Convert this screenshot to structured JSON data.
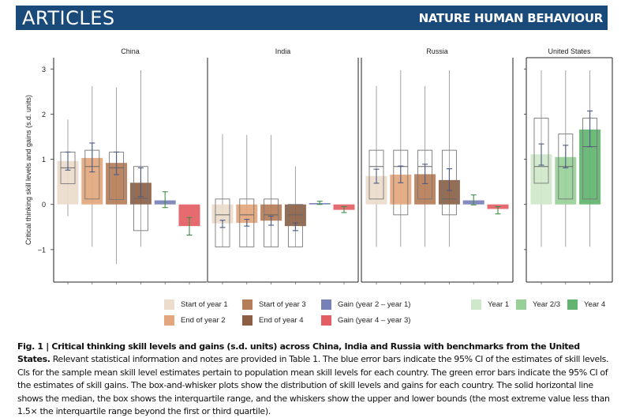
{
  "header": {
    "section": "ARTICLES",
    "journal": "NATURE HUMAN BEHAVIOUR",
    "color": "#1a4a7a"
  },
  "chart_data": {
    "type": "bar",
    "ylabel": "Critical thinking skill levels and gains (s.d. units)",
    "ylim": [
      -1.72,
      3.25
    ],
    "yticks": [
      3,
      2,
      1,
      0,
      -1
    ],
    "ytick_labels": [
      "3",
      "2",
      "1",
      "0",
      "−1"
    ],
    "grid": false,
    "legend_placement": "bottom",
    "colors": {
      "Start of year 1": "#ebdccb",
      "End of year 2": "#e4a77d",
      "Start of year 3": "#b57d58",
      "End of year 4": "#8c5f45",
      "Gain (year 2 – year 1)": "#7880b8",
      "Gain (year 4 – year 3)": "#e35e64",
      "Year 1": "#cfe8ca",
      "Year 2/3": "#98d098",
      "Year 4": "#62b470",
      "level_ci": "#4b5a86",
      "gain_ci": "#3f8f45"
    },
    "panels": [
      {
        "title": "China",
        "bars": [
          {
            "category": "Start of year 1",
            "mean": 0.96,
            "ci": [
              0.76,
              1.16
            ],
            "box": {
              "q1": 0.46,
              "median": 0.81,
              "q3": 1.16,
              "whisker_low": -0.26,
              "whisker_high": 1.88
            }
          },
          {
            "category": "End of year 2",
            "mean": 1.03,
            "ci": [
              0.72,
              1.36
            ],
            "box": {
              "q1": 0.12,
              "median": 0.84,
              "q3": 1.2,
              "whisker_low": -0.94,
              "whisker_high": 2.62
            }
          },
          {
            "category": "Start of year 3",
            "mean": 0.92,
            "ci": [
              0.66,
              1.16
            ],
            "box": {
              "q1": 0.11,
              "median": 0.81,
              "q3": 1.16,
              "whisker_low": -1.32,
              "whisker_high": 2.59
            }
          },
          {
            "category": "End of year 4",
            "mean": 0.48,
            "ci": [
              0.17,
              0.81
            ],
            "box": {
              "q1": -0.58,
              "median": 0.13,
              "q3": 0.84,
              "whisker_low": -0.94,
              "whisker_high": 2.97
            }
          },
          {
            "category": "Gain (year 2 – year 1)",
            "mean": 0.09,
            "ci": [
              -0.07,
              0.28
            ]
          },
          {
            "category": "Gain (year 4 – year 3)",
            "mean": -0.48,
            "ci": [
              -0.68,
              -0.29
            ]
          }
        ]
      },
      {
        "title": "India",
        "bars": [
          {
            "category": "Start of year 1",
            "mean": -0.42,
            "ci": [
              -0.51,
              -0.35
            ],
            "box": {
              "q1": -0.94,
              "median": -0.23,
              "q3": 0.12,
              "whisker_low": -0.94,
              "whisker_high": 1.56
            }
          },
          {
            "category": "End of year 2",
            "mean": -0.41,
            "ci": [
              -0.48,
              -0.33
            ],
            "box": {
              "q1": -0.94,
              "median": -0.23,
              "q3": 0.12,
              "whisker_low": -0.94,
              "whisker_high": 1.54
            }
          },
          {
            "category": "Start of year 3",
            "mean": -0.36,
            "ci": [
              -0.46,
              -0.26
            ],
            "box": {
              "q1": -0.94,
              "median": -0.23,
              "q3": 0.12,
              "whisker_low": -0.94,
              "whisker_high": 1.54
            }
          },
          {
            "category": "End of year 4",
            "mean": -0.48,
            "ci": [
              -0.58,
              -0.41
            ],
            "box": {
              "q1": -0.94,
              "median": -0.23,
              "q3": 0.0,
              "whisker_low": -0.94,
              "whisker_high": 0.84
            }
          },
          {
            "category": "Gain (year 2 – year 1)",
            "mean": 0.03,
            "ci": [
              0.0,
              0.07
            ]
          },
          {
            "category": "Gain (year 4 – year 3)",
            "mean": -0.12,
            "ci": [
              -0.18,
              -0.05
            ]
          }
        ]
      },
      {
        "title": "Russia",
        "bars": [
          {
            "category": "Start of year 1",
            "mean": 0.63,
            "ci": [
              0.47,
              0.78
            ],
            "box": {
              "q1": 0.12,
              "median": 0.84,
              "q3": 1.2,
              "whisker_low": -0.94,
              "whisker_high": 2.62
            }
          },
          {
            "category": "End of year 2",
            "mean": 0.66,
            "ci": [
              0.48,
              0.85
            ],
            "box": {
              "q1": -0.23,
              "median": 0.84,
              "q3": 1.2,
              "whisker_low": -0.94,
              "whisker_high": 2.97
            }
          },
          {
            "category": "Start of year 3",
            "mean": 0.67,
            "ci": [
              0.46,
              0.89
            ],
            "box": {
              "q1": 0.12,
              "median": 0.84,
              "q3": 1.2,
              "whisker_low": -0.94,
              "whisker_high": 2.62
            }
          },
          {
            "category": "End of year 4",
            "mean": 0.54,
            "ci": [
              0.31,
              0.79
            ],
            "box": {
              "q1": -0.23,
              "median": 0.12,
              "q3": 1.2,
              "whisker_low": -0.94,
              "whisker_high": 2.97
            }
          },
          {
            "category": "Gain (year 2 – year 1)",
            "mean": 0.09,
            "ci": [
              -0.01,
              0.21
            ]
          },
          {
            "category": "Gain (year 4 – year 3)",
            "mean": -0.1,
            "ci": [
              -0.21,
              -0.05
            ]
          }
        ]
      },
      {
        "title": "United States",
        "bars": [
          {
            "category": "Year 1",
            "mean": 1.11,
            "ci": [
              0.87,
              1.34
            ],
            "box": {
              "q1": 0.47,
              "median": 0.84,
              "q3": 1.91,
              "whisker_low": -0.94,
              "whisker_high": 2.97
            }
          },
          {
            "category": "Year 2/3",
            "mean": 1.05,
            "ci": [
              0.81,
              1.31
            ],
            "box": {
              "q1": 0.12,
              "median": 0.84,
              "q3": 1.56,
              "whisker_low": -0.94,
              "whisker_high": 2.97
            }
          },
          {
            "category": "Year 4",
            "mean": 1.66,
            "ci": [
              1.28,
              2.07
            ],
            "box": {
              "q1": 0.12,
              "median": 1.28,
              "q3": 1.91,
              "whisker_low": -0.94,
              "whisker_high": 2.97
            }
          }
        ]
      }
    ],
    "legend": [
      "Start of year 1",
      "End of year 2",
      "Start of year 3",
      "End of year 4",
      "Gain (year 2 – year 1)",
      "Gain (year 4 – year 3)",
      "Year 1",
      "Year 2/3",
      "Year 4"
    ]
  },
  "caption": {
    "title": "Fig. 1 | Critical thinking skill levels and gains (s.d. units) across China, India and Russia with benchmarks from the United States.",
    "body": " Relevant statistical information and notes are provided in Table 1. The blue error bars indicate the 95% CI of the estimates of skill levels. CIs for the sample mean skill level estimates pertain to population mean skill levels for each country. The green error bars indicate the 95% CI of the estimates of skill gains. The box-and-whisker plots show the distribution of skill levels and gains for each country. The solid horizontal line shows the median, the box shows the interquartile range, and the whiskers show the upper and lower bounds (the most extreme value less than 1.5× the interquartile range beyond the first or third quartile)."
  }
}
